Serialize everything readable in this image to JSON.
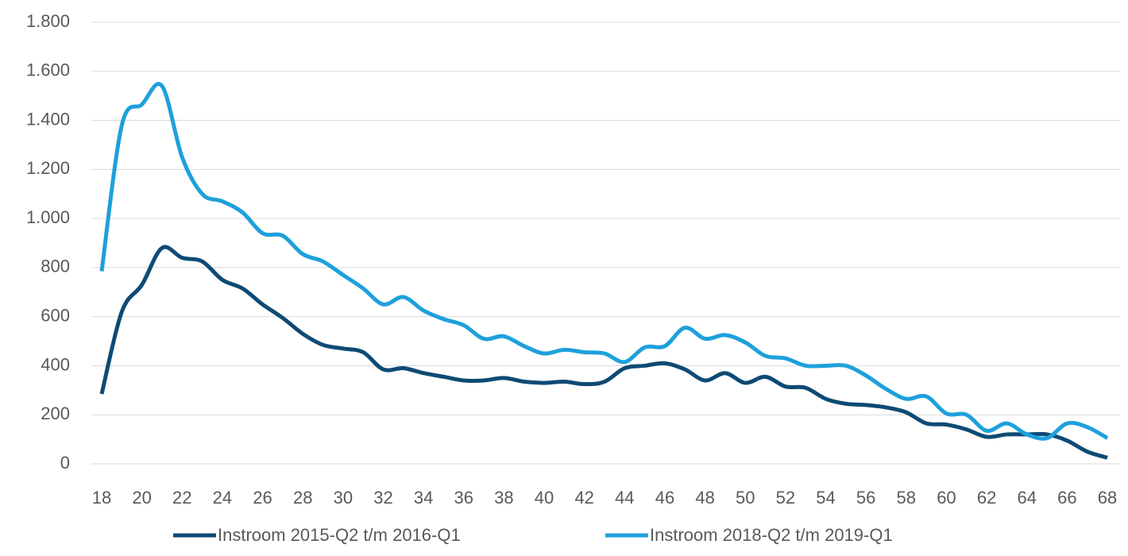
{
  "chart_data": {
    "type": "line",
    "x": [
      18,
      19,
      20,
      21,
      22,
      23,
      24,
      25,
      26,
      27,
      28,
      29,
      30,
      31,
      32,
      33,
      34,
      35,
      36,
      37,
      38,
      39,
      40,
      41,
      42,
      43,
      44,
      45,
      46,
      47,
      48,
      49,
      50,
      51,
      52,
      53,
      54,
      55,
      56,
      57,
      58,
      59,
      60,
      61,
      62,
      63,
      64,
      65,
      66,
      67,
      68
    ],
    "series": [
      {
        "name": "Instroom 2015-Q2 t/m 2016-Q1",
        "color": "#0e4a75",
        "values": [
          285,
          620,
          730,
          880,
          840,
          825,
          750,
          715,
          650,
          595,
          530,
          485,
          470,
          455,
          385,
          390,
          370,
          355,
          340,
          340,
          350,
          335,
          330,
          335,
          325,
          335,
          390,
          400,
          410,
          385,
          340,
          370,
          330,
          355,
          315,
          310,
          265,
          245,
          240,
          230,
          210,
          165,
          160,
          140,
          110,
          120,
          120,
          120,
          95,
          50,
          25
        ]
      },
      {
        "name": "Instroom 2018-Q2 t/m 2019-Q1",
        "color": "#1ea0dc",
        "values": [
          785,
          1380,
          1465,
          1540,
          1250,
          1100,
          1070,
          1025,
          940,
          930,
          855,
          825,
          770,
          715,
          650,
          680,
          625,
          590,
          565,
          510,
          520,
          480,
          450,
          465,
          455,
          450,
          415,
          475,
          480,
          555,
          510,
          525,
          495,
          440,
          430,
          400,
          400,
          400,
          360,
          305,
          265,
          275,
          205,
          200,
          135,
          165,
          120,
          105,
          165,
          150,
          105
        ]
      }
    ],
    "xlim": [
      18,
      68
    ],
    "xticks": [
      18,
      20,
      22,
      24,
      26,
      28,
      30,
      32,
      34,
      36,
      38,
      40,
      42,
      44,
      46,
      48,
      50,
      52,
      54,
      56,
      58,
      60,
      62,
      64,
      66,
      68
    ],
    "ylim": [
      0,
      1800
    ],
    "yticks": [
      0,
      200,
      400,
      600,
      800,
      {
        "value": 1000,
        "label": "1.000"
      },
      {
        "value": 1200,
        "label": "1.200"
      },
      {
        "value": 1400,
        "label": "1.400"
      },
      {
        "value": 1600,
        "label": "1.600"
      },
      {
        "value": 1800,
        "label": "1.800"
      }
    ],
    "grid": true,
    "legend": "bottom"
  }
}
